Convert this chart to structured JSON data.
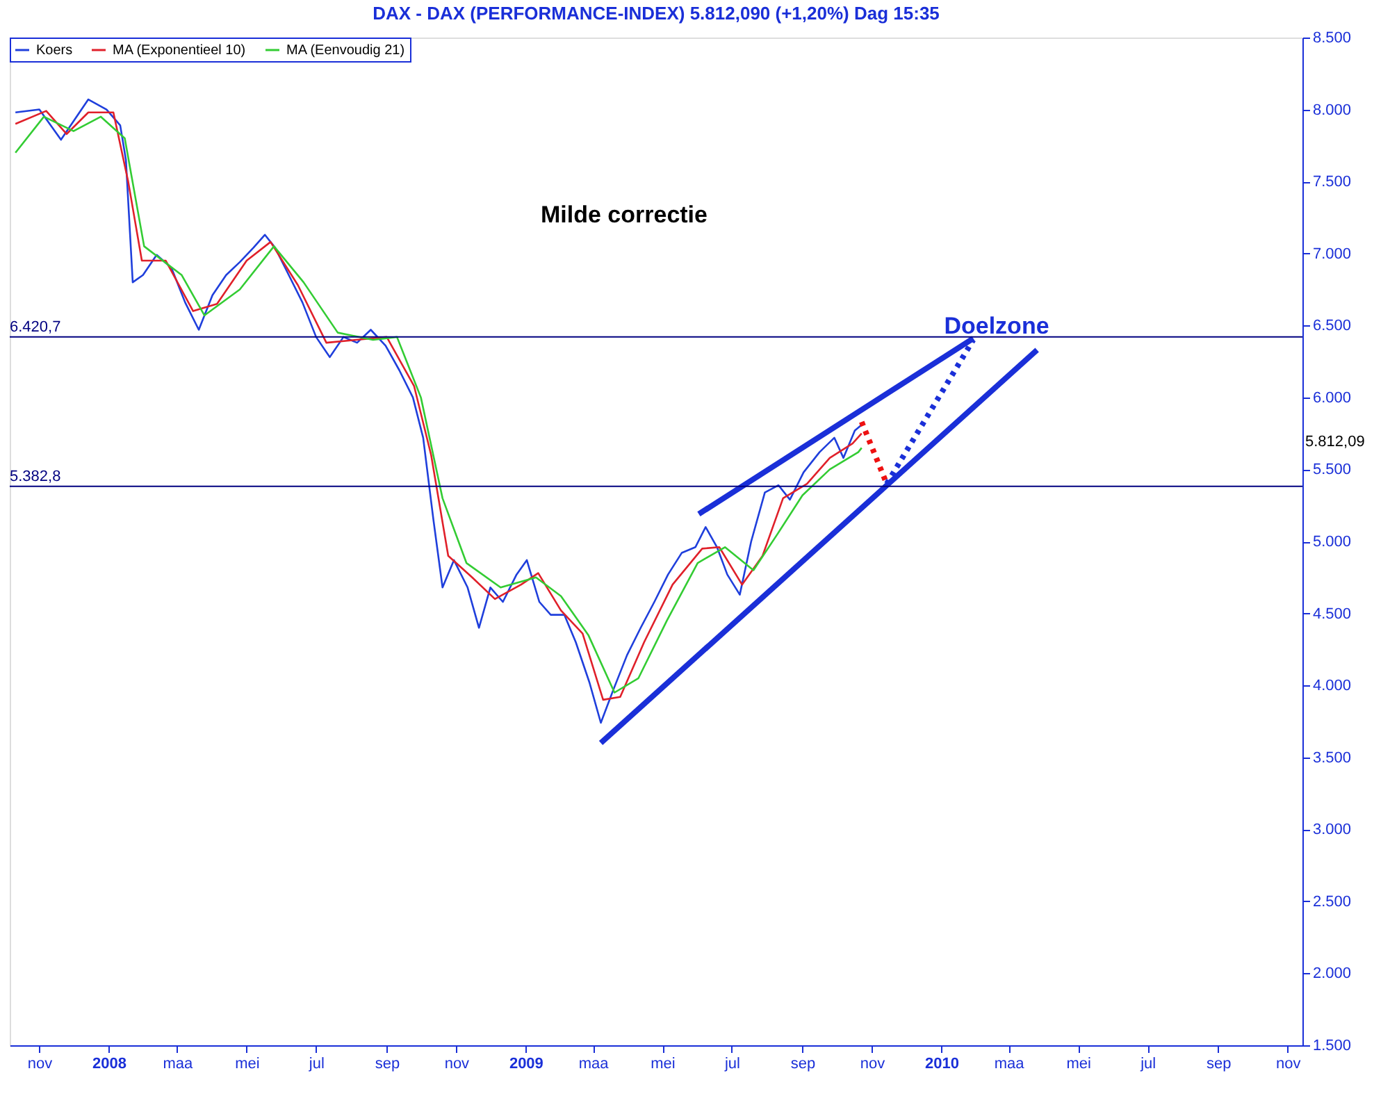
{
  "chart_data": {
    "type": "line",
    "title": "DAX - DAX (PERFORMANCE-INDEX)   5.812,090 (+1,20%)   Dag  15:35",
    "legend": "top left",
    "grid": false,
    "marker": "none",
    "xlim": [
      "2007-10-06",
      "2010-11-14"
    ],
    "xticks": [
      {
        "value": "2007-11-01",
        "label": "nov"
      },
      {
        "value": "2008-01-01",
        "label": "2008"
      },
      {
        "value": "2008-03-01",
        "label": "maa"
      },
      {
        "value": "2008-05-01",
        "label": "mei"
      },
      {
        "value": "2008-07-01",
        "label": "jul"
      },
      {
        "value": "2008-09-01",
        "label": "sep"
      },
      {
        "value": "2008-11-01",
        "label": "nov"
      },
      {
        "value": "2009-01-01",
        "label": "2009"
      },
      {
        "value": "2009-03-01",
        "label": "maa"
      },
      {
        "value": "2009-05-01",
        "label": "mei"
      },
      {
        "value": "2009-07-01",
        "label": "jul"
      },
      {
        "value": "2009-09-01",
        "label": "sep"
      },
      {
        "value": "2009-11-01",
        "label": "nov"
      },
      {
        "value": "2010-01-01",
        "label": "2010"
      },
      {
        "value": "2010-03-01",
        "label": "maa"
      },
      {
        "value": "2010-05-01",
        "label": "mei"
      },
      {
        "value": "2010-07-01",
        "label": "jul"
      },
      {
        "value": "2010-09-01",
        "label": "sep"
      },
      {
        "value": "2010-11-01",
        "label": "nov"
      }
    ],
    "ylim": [
      1500,
      8500
    ],
    "yticks": [
      {
        "value": 1500,
        "label": "1.500"
      },
      {
        "value": 2000,
        "label": "2.000"
      },
      {
        "value": 2500,
        "label": "2.500"
      },
      {
        "value": 3000,
        "label": "3.000"
      },
      {
        "value": 3500,
        "label": "3.500"
      },
      {
        "value": 4000,
        "label": "4.000"
      },
      {
        "value": 4500,
        "label": "4.500"
      },
      {
        "value": 5000,
        "label": "5.000"
      },
      {
        "value": 5500,
        "label": "5.500"
      },
      {
        "value": 6000,
        "label": "6.000"
      },
      {
        "value": 6500,
        "label": "6.500"
      },
      {
        "value": 7000,
        "label": "7.000"
      },
      {
        "value": 7500,
        "label": "7.500"
      },
      {
        "value": 8000,
        "label": "8.000"
      },
      {
        "value": 8500,
        "label": "8.500"
      }
    ],
    "series": [
      {
        "name": "Koers",
        "color": "#1f3fdc",
        "x": [
          "2007-10-11",
          "2007-11-01",
          "2007-11-20",
          "2007-12-02",
          "2007-12-14",
          "2007-12-30",
          "2008-01-11",
          "2008-01-16",
          "2008-01-22",
          "2008-01-31",
          "2008-02-12",
          "2008-02-25",
          "2008-03-08",
          "2008-03-20",
          "2008-04-01",
          "2008-04-13",
          "2008-04-25",
          "2008-05-07",
          "2008-05-17",
          "2008-05-26",
          "2008-06-07",
          "2008-06-19",
          "2008-07-01",
          "2008-07-13",
          "2008-07-25",
          "2008-08-06",
          "2008-08-18",
          "2008-08-31",
          "2008-09-12",
          "2008-09-24",
          "2008-10-03",
          "2008-10-12",
          "2008-10-20",
          "2008-10-30",
          "2008-11-11",
          "2008-11-21",
          "2008-12-01",
          "2008-12-12",
          "2008-12-24",
          "2009-01-02",
          "2009-01-13",
          "2009-01-23",
          "2009-02-04",
          "2009-02-14",
          "2009-02-26",
          "2009-03-08",
          "2009-03-19",
          "2009-03-31",
          "2009-04-12",
          "2009-04-24",
          "2009-05-06",
          "2009-05-18",
          "2009-05-30",
          "2009-06-08",
          "2009-06-18",
          "2009-06-27",
          "2009-07-08",
          "2009-07-18",
          "2009-07-30",
          "2009-08-11",
          "2009-08-21",
          "2009-09-02",
          "2009-09-16",
          "2009-09-29",
          "2009-10-07",
          "2009-10-17",
          "2009-10-23"
        ],
        "values": [
          7980,
          8000,
          7790,
          7930,
          8070,
          8000,
          7890,
          7650,
          6800,
          6850,
          6990,
          6900,
          6660,
          6470,
          6710,
          6850,
          6940,
          7040,
          7130,
          7040,
          6850,
          6660,
          6420,
          6280,
          6420,
          6380,
          6470,
          6360,
          6190,
          6000,
          5720,
          5150,
          4680,
          4870,
          4680,
          4400,
          4680,
          4580,
          4770,
          4870,
          4580,
          4490,
          4490,
          4300,
          4020,
          3740,
          3970,
          4210,
          4400,
          4580,
          4770,
          4920,
          4960,
          5100,
          4960,
          4770,
          4630,
          5000,
          5340,
          5390,
          5290,
          5480,
          5620,
          5720,
          5580,
          5770,
          5810
        ]
      },
      {
        "name": "MA (Exponentieel 10)",
        "color": "#e0202a",
        "x": [
          "2007-10-11",
          "2007-11-07",
          "2007-11-25",
          "2007-12-14",
          "2008-01-05",
          "2008-01-18",
          "2008-01-30",
          "2008-02-20",
          "2008-03-15",
          "2008-04-05",
          "2008-05-01",
          "2008-05-22",
          "2008-06-15",
          "2008-07-10",
          "2008-08-05",
          "2008-09-01",
          "2008-09-25",
          "2008-10-10",
          "2008-10-25",
          "2008-11-15",
          "2008-12-05",
          "2008-12-28",
          "2009-01-12",
          "2009-02-01",
          "2009-02-20",
          "2009-03-10",
          "2009-03-25",
          "2009-04-15",
          "2009-05-10",
          "2009-06-05",
          "2009-06-20",
          "2009-07-10",
          "2009-07-28",
          "2009-08-15",
          "2009-09-05",
          "2009-09-25",
          "2009-10-15",
          "2009-10-23"
        ],
        "values": [
          7900,
          7990,
          7830,
          7980,
          7980,
          7500,
          6950,
          6950,
          6600,
          6650,
          6950,
          7080,
          6780,
          6380,
          6400,
          6420,
          6080,
          5600,
          4900,
          4750,
          4600,
          4700,
          4780,
          4520,
          4360,
          3900,
          3920,
          4300,
          4700,
          4950,
          4960,
          4700,
          4900,
          5300,
          5400,
          5580,
          5680,
          5750
        ]
      },
      {
        "name": "MA (Eenvoudig 21)",
        "color": "#33cc33",
        "x": [
          "2007-10-11",
          "2007-11-05",
          "2007-12-01",
          "2007-12-25",
          "2008-01-15",
          "2008-02-01",
          "2008-03-05",
          "2008-03-25",
          "2008-04-25",
          "2008-05-25",
          "2008-06-20",
          "2008-07-20",
          "2008-08-20",
          "2008-09-10",
          "2008-10-01",
          "2008-10-20",
          "2008-11-10",
          "2008-12-10",
          "2009-01-10",
          "2009-02-01",
          "2009-02-25",
          "2009-03-20",
          "2009-04-10",
          "2009-05-05",
          "2009-06-01",
          "2009-06-25",
          "2009-07-20",
          "2009-08-10",
          "2009-09-01",
          "2009-09-25",
          "2009-10-20",
          "2009-10-23"
        ],
        "values": [
          7700,
          7950,
          7850,
          7950,
          7800,
          7050,
          6850,
          6570,
          6750,
          7050,
          6800,
          6450,
          6400,
          6420,
          6000,
          5300,
          4850,
          4680,
          4750,
          4620,
          4350,
          3950,
          4050,
          4450,
          4850,
          4960,
          4800,
          5050,
          5320,
          5500,
          5620,
          5650
        ]
      },
      {
        "color": "#1a2fd8",
        "line_style": "solid",
        "x": [
          "2009-03-08",
          "2010-03-26"
        ],
        "values": [
          3600,
          6330
        ]
      },
      {
        "color": "#1a2fd8",
        "line_style": "solid",
        "x": [
          "2009-06-02",
          "2010-01-29"
        ],
        "values": [
          5190,
          6410
        ]
      },
      {
        "color": "#ee1111",
        "line_style": "dotted",
        "x": [
          "2009-10-23",
          "2009-11-14"
        ],
        "values": [
          5830,
          5400
        ]
      },
      {
        "color": "#1a2fd8",
        "line_style": "dotted",
        "x": [
          "2009-11-14",
          "2010-01-29"
        ],
        "values": [
          5400,
          6400
        ]
      }
    ],
    "ref_lines": [
      {
        "axis": "y",
        "value": 6420.7,
        "label": "6.420,7",
        "color": "#000080"
      },
      {
        "axis": "y",
        "value": 5382.8,
        "label": "5.382,8",
        "color": "#000080"
      }
    ],
    "annotations": [
      "Milde correctie",
      "Doelzone",
      "5.812,09"
    ]
  }
}
